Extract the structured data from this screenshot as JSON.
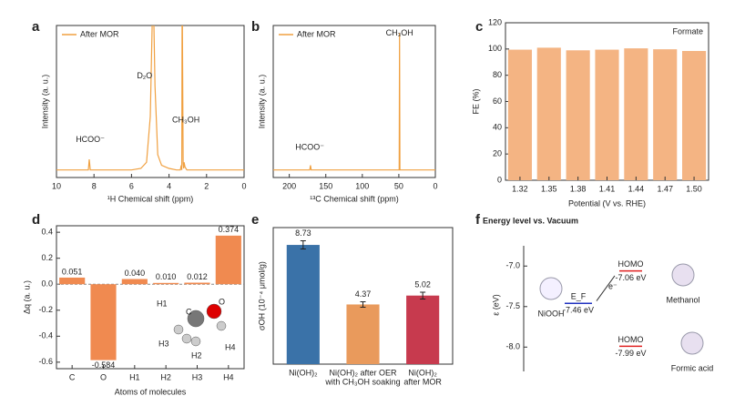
{
  "chart_data": [
    {
      "panel": "a",
      "type": "line",
      "xlabel": "¹H Chemical shift (ppm)",
      "ylabel": "Intensity (a. u.)",
      "xlim": [
        10,
        0
      ],
      "xticks": [
        10,
        8,
        6,
        4,
        2,
        0
      ],
      "ylim": [
        0,
        100
      ],
      "annotations": [
        "HCOO⁻",
        "D₂O",
        "CH₃OH"
      ],
      "series": [
        {
          "name": "After MOR",
          "color": "#f0a040",
          "x": [
            10,
            9,
            8.4,
            8.3,
            8.25,
            8.2,
            8.1,
            7,
            6,
            5.5,
            5.2,
            5.0,
            4.85,
            4.75,
            4.6,
            4.4,
            4.0,
            3.6,
            3.4,
            3.35,
            3.32,
            3.3,
            3.25,
            3.22,
            3.2,
            3.15,
            3.1,
            3.05,
            3.0,
            2.5,
            1,
            0
          ],
          "values": [
            5,
            5,
            5,
            5,
            12,
            5,
            5,
            5,
            5,
            6,
            10,
            40,
            130,
            60,
            15,
            8,
            6,
            5,
            5,
            8,
            5,
            130,
            9,
            6,
            10,
            7,
            6,
            5,
            5,
            5,
            5,
            5
          ]
        }
      ]
    },
    {
      "panel": "b",
      "type": "line",
      "xlabel": "¹³C Chemical shift (ppm)",
      "ylabel": "Intensity (a. u.)",
      "xlim": [
        222,
        0
      ],
      "xticks": [
        200,
        150,
        100,
        50,
        0
      ],
      "ylim": [
        0,
        100
      ],
      "annotations": [
        "HCOO⁻",
        "CH₃OH"
      ],
      "series": [
        {
          "name": "After MOR",
          "color": "#f0a040",
          "x": [
            222,
            200,
            180,
            172,
            171,
            170,
            160,
            140,
            100,
            60,
            50,
            49.5,
            49,
            48.5,
            47,
            40,
            20,
            0
          ],
          "values": [
            5,
            5,
            5,
            5,
            8,
            5,
            5,
            5,
            5,
            5,
            5,
            5,
            95,
            5,
            5,
            5,
            5,
            5
          ]
        }
      ]
    },
    {
      "panel": "c",
      "type": "bar",
      "xlabel": "Potential (V vs. RHE)",
      "ylabel": "FE (%)",
      "label": "Formate",
      "categories": [
        "1.32",
        "1.35",
        "1.38",
        "1.41",
        "1.44",
        "1.47",
        "1.50"
      ],
      "values": [
        99.5,
        101,
        99,
        99.5,
        100.5,
        99.8,
        98.5
      ],
      "color": "#f4b483",
      "ylim": [
        0,
        120
      ],
      "yticks": [
        0,
        20,
        40,
        60,
        80,
        100,
        120
      ]
    },
    {
      "panel": "d",
      "type": "bar",
      "xlabel": "Atoms of molecules",
      "ylabel": "Δq (a. u.)",
      "categories": [
        "C",
        "O",
        "H1",
        "H2",
        "H3",
        "H4"
      ],
      "values": [
        0.051,
        -0.584,
        0.04,
        0.01,
        0.012,
        0.374
      ],
      "value_labels": [
        "0.051",
        "-0.584",
        "0.040",
        "0.010",
        "0.012",
        "0.374"
      ],
      "color": "#f08a50",
      "ylim": [
        -0.65,
        0.45
      ],
      "yticks": [
        -0.6,
        -0.4,
        -0.2,
        {
          "value": 0,
          "label": "0.0"
        },
        0.2,
        0.4
      ],
      "atom_labels": [
        "H1",
        "C",
        "O",
        "H3",
        "H2",
        "H4"
      ]
    },
    {
      "panel": "e",
      "type": "bar",
      "ylabel": "σOH (10⁻⁴ μmol/g)",
      "categories": [
        [
          "Ni(OH)₂"
        ],
        [
          "Ni(OH)₂ after OER",
          "with CH₃OH soaking"
        ],
        [
          "Ni(OH)₂",
          "after MOR"
        ]
      ],
      "values": [
        8.73,
        4.37,
        5.02
      ],
      "errors": [
        0.3,
        0.2,
        0.25
      ],
      "colors": [
        "#3a72a8",
        "#e99a5c",
        "#c73a4e"
      ],
      "ylim": [
        0,
        10
      ]
    },
    {
      "panel": "f",
      "type": "energy",
      "title": "Energy level vs. Vacuum",
      "ylabel": "ε (eV)",
      "ylim": [
        -8.3,
        -6.75
      ],
      "yticks": [
        {
          "value": -7,
          "label": "-7.0"
        },
        {
          "value": -7.5,
          "label": "-7.5"
        },
        {
          "value": -8,
          "label": "-8.0"
        }
      ],
      "arrow_label": "e⁻",
      "levels": [
        {
          "label": "E_F",
          "value": -7.46,
          "value_label": "-7.46 eV",
          "color": "#2233c0",
          "species": "NiOOH"
        },
        {
          "label": "HOMO",
          "value": -7.06,
          "value_label": "-7.06 eV",
          "color": "#e02020",
          "species": "Methanol"
        },
        {
          "label": "HOMO",
          "value": -7.99,
          "value_label": "-7.99 eV",
          "color": "#e02020",
          "species": "Formic acid"
        }
      ]
    }
  ]
}
